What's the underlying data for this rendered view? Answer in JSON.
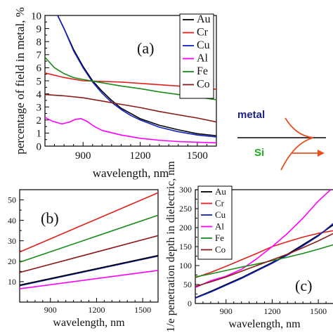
{
  "figure": {
    "inset": {
      "metal_label": "metal",
      "si_label": "Si",
      "metal_color": "#1a237e",
      "si_color": "#1faa1f",
      "curve_color": "#e8501e"
    }
  },
  "chart_data": [
    {
      "id": "a",
      "type": "line",
      "panel_label": "(a)",
      "xlabel": "wavelength, nm",
      "ylabel": "percentage of field in metal, %",
      "xlim": [
        700,
        1600
      ],
      "ylim": [
        0,
        10
      ],
      "xticks": [
        900,
        1200,
        1500
      ],
      "yticks": [
        0,
        1,
        2,
        3,
        4,
        5,
        6,
        7,
        8,
        9,
        10
      ],
      "legend": "top-right",
      "series": [
        {
          "name": "Au",
          "color": "#000000",
          "x": [
            700,
            760,
            800,
            850,
            900,
            950,
            1000,
            1050,
            1100,
            1150,
            1200,
            1300,
            1400,
            1500,
            1600
          ],
          "y": [
            14,
            10.2,
            9.0,
            7.4,
            6.1,
            5.0,
            4.2,
            3.5,
            2.9,
            2.5,
            2.1,
            1.6,
            1.25,
            0.95,
            0.8
          ]
        },
        {
          "name": "Cr",
          "color": "#e0201b",
          "x": [
            700,
            800,
            900,
            1000,
            1100,
            1200,
            1300,
            1400,
            1500,
            1600
          ],
          "y": [
            5.6,
            5.25,
            5.0,
            4.95,
            4.9,
            4.8,
            4.7,
            4.6,
            4.45,
            4.35
          ]
        },
        {
          "name": "Cu",
          "color": "#1020c0",
          "x": [
            700,
            760,
            800,
            850,
            900,
            950,
            1000,
            1050,
            1100,
            1150,
            1200,
            1300,
            1400,
            1500,
            1600
          ],
          "y": [
            14,
            10.2,
            9.0,
            7.3,
            6.0,
            4.9,
            4.05,
            3.35,
            2.8,
            2.35,
            2.0,
            1.45,
            1.1,
            0.85,
            0.7
          ]
        },
        {
          "name": "Al",
          "color": "#ff00ff",
          "x": [
            700,
            740,
            790,
            830,
            860,
            890,
            920,
            960,
            1000,
            1100,
            1200,
            1300,
            1400,
            1500,
            1600
          ],
          "y": [
            2.2,
            1.9,
            1.7,
            1.85,
            2.05,
            2.1,
            1.9,
            1.5,
            1.2,
            0.85,
            0.6,
            0.45,
            0.35,
            0.3,
            0.25
          ]
        },
        {
          "name": "Fe",
          "color": "#1a8a1a",
          "x": [
            700,
            750,
            800,
            850,
            900,
            1000,
            1100,
            1200,
            1300,
            1400,
            1500,
            1600
          ],
          "y": [
            6.8,
            6.0,
            5.55,
            5.25,
            5.1,
            4.85,
            4.6,
            4.4,
            4.15,
            3.95,
            3.75,
            3.55
          ]
        },
        {
          "name": "Co",
          "color": "#8b1a1a",
          "x": [
            700,
            800,
            900,
            1000,
            1100,
            1200,
            1300,
            1400,
            1500,
            1600
          ],
          "y": [
            3.95,
            3.85,
            3.7,
            3.45,
            3.2,
            2.95,
            2.65,
            2.4,
            2.15,
            1.85
          ]
        }
      ]
    },
    {
      "id": "b",
      "type": "line",
      "panel_label": "(b)",
      "xlabel": "wavelength, nm",
      "ylabel": "",
      "xlim": [
        700,
        1600
      ],
      "ylim": [
        0,
        55
      ],
      "xticks": [
        900,
        1200,
        1500
      ],
      "yticks": [
        10,
        20,
        30,
        40,
        50
      ],
      "series": [
        {
          "color": "#e0201b",
          "x": [
            700,
            1600
          ],
          "y": [
            24.5,
            53.5
          ]
        },
        {
          "color": "#1a8a1a",
          "x": [
            700,
            1600
          ],
          "y": [
            19.5,
            42.5
          ]
        },
        {
          "color": "#8b1a1a",
          "x": [
            700,
            1600
          ],
          "y": [
            14.5,
            32.5
          ]
        },
        {
          "color": "#1020c0",
          "x": [
            700,
            1600
          ],
          "y": [
            8.0,
            22.5
          ]
        },
        {
          "color": "#000000",
          "x": [
            700,
            1600
          ],
          "y": [
            8.3,
            22.8
          ]
        },
        {
          "color": "#ff00ff",
          "x": [
            700,
            1600
          ],
          "y": [
            6.5,
            15.5
          ]
        }
      ]
    },
    {
      "id": "c",
      "type": "line",
      "panel_label": "(c)",
      "xlabel": "wavelength, nm",
      "ylabel": "1/e penetration depth in dielectric, nm",
      "xlim": [
        700,
        1600
      ],
      "ylim": [
        0,
        300
      ],
      "xticks": [
        900,
        1200,
        1500
      ],
      "yticks": [
        0,
        50,
        100,
        150,
        200,
        250,
        300
      ],
      "legend": "top-left",
      "series": [
        {
          "name": "Au",
          "color": "#000000",
          "x": [
            700,
            800,
            900,
            1000,
            1100,
            1200,
            1300,
            1400,
            1500,
            1600
          ],
          "y": [
            15,
            32,
            50,
            68,
            88,
            108,
            130,
            155,
            180,
            208
          ]
        },
        {
          "name": "Cr",
          "color": "#e0201b",
          "x": [
            700,
            800,
            900,
            1000,
            1100,
            1200,
            1300,
            1400,
            1500,
            1600
          ],
          "y": [
            68,
            82,
            98,
            115,
            132,
            150,
            163,
            175,
            185,
            192
          ]
        },
        {
          "name": "Cu",
          "color": "#1020c0",
          "x": [
            700,
            800,
            900,
            1000,
            1100,
            1200,
            1300,
            1400,
            1500,
            1600
          ],
          "y": [
            14,
            30,
            48,
            66,
            86,
            106,
            128,
            152,
            178,
            212
          ]
        },
        {
          "name": "Al",
          "color": "#ff00ff",
          "x": [
            700,
            800,
            900,
            1000,
            1100,
            1200,
            1300,
            1400,
            1500,
            1580
          ],
          "y": [
            42,
            60,
            72,
            90,
            118,
            150,
            185,
            225,
            270,
            300
          ]
        },
        {
          "name": "Fe",
          "color": "#1a8a1a",
          "x": [
            700,
            800,
            900,
            1000,
            1100,
            1200,
            1300,
            1400,
            1500,
            1600
          ],
          "y": [
            70,
            78,
            87,
            96,
            104,
            113,
            122,
            132,
            143,
            155
          ]
        },
        {
          "name": "Co",
          "color": "#8b1a1a",
          "x": [
            700,
            800,
            900,
            1000,
            1100,
            1200,
            1300,
            1400,
            1500,
            1600
          ],
          "y": [
            45,
            57,
            70,
            85,
            100,
            115,
            130,
            147,
            165,
            185
          ]
        }
      ]
    }
  ]
}
